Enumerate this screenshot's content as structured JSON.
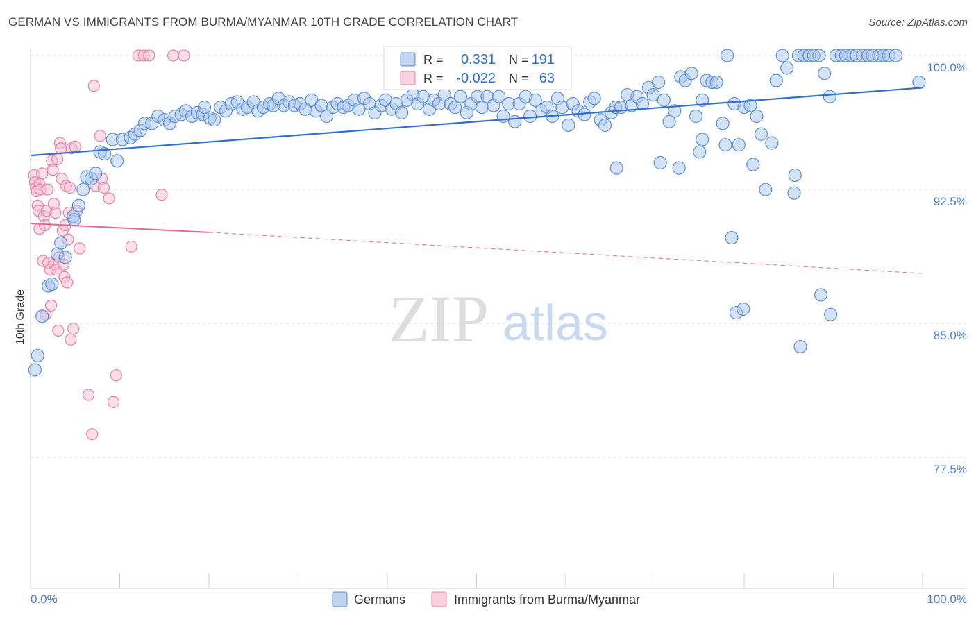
{
  "header": {
    "title": "GERMAN VS IMMIGRANTS FROM BURMA/MYANMAR 10TH GRADE CORRELATION CHART",
    "source": "Source: ZipAtlas.com"
  },
  "watermark": {
    "zip": "ZIP",
    "atlas": "atlas"
  },
  "colors": {
    "blue": "#5b8fd6",
    "blue_fill": "#a9c6ef",
    "blue_line": "#2f6fce",
    "pink": "#e882a4",
    "pink_fill": "#f7bfd1",
    "pink_line": "#e8668f",
    "tick_label": "#4a7fd0",
    "grid": "#dddddd"
  },
  "legend": {
    "rows": [
      {
        "r_label": "R =",
        "r_value": "0.331",
        "n_label": "N =",
        "n_value": "191"
      },
      {
        "r_label": "R =",
        "r_value": "-0.022",
        "n_label": "N =",
        "n_value": "63"
      }
    ]
  },
  "bottom_legend": {
    "germans": "Germans",
    "burma": "Immigrants from Burma/Myanmar"
  },
  "chart_data": {
    "type": "scatter",
    "title": "GERMAN VS IMMIGRANTS FROM BURMA/MYANMAR 10TH GRADE CORRELATION CHART",
    "ylabel": "10th Grade",
    "xlabel": "",
    "x_tick_labels": [
      "0.0%",
      "100.0%"
    ],
    "y_tick_labels": [
      "100.0%",
      "92.5%",
      "85.0%",
      "77.5%"
    ],
    "y_ticks": [
      100.0,
      92.5,
      85.0,
      77.5
    ],
    "xlim": [
      0,
      100
    ],
    "ylim": [
      70.5,
      101.5
    ],
    "grid": true,
    "series": [
      {
        "name": "Germans",
        "R": 0.331,
        "N": 191,
        "trend": {
          "x": [
            0,
            100
          ],
          "y": [
            94.4,
            98.2
          ],
          "style": "solid"
        },
        "points": [
          [
            0.5,
            82.4
          ],
          [
            0.8,
            83.2
          ],
          [
            1.3,
            85.4
          ],
          [
            2.0,
            87.1
          ],
          [
            2.4,
            87.2
          ],
          [
            3.0,
            88.9
          ],
          [
            3.4,
            89.5
          ],
          [
            3.9,
            88.7
          ],
          [
            4.8,
            91.0
          ],
          [
            4.9,
            90.8
          ],
          [
            5.4,
            91.6
          ],
          [
            5.9,
            92.5
          ],
          [
            6.3,
            93.2
          ],
          [
            6.8,
            93.1
          ],
          [
            7.3,
            93.4
          ],
          [
            7.8,
            94.6
          ],
          [
            8.3,
            94.5
          ],
          [
            9.2,
            95.3
          ],
          [
            9.7,
            94.1
          ],
          [
            10.3,
            95.3
          ],
          [
            11.2,
            95.4
          ],
          [
            11.7,
            95.6
          ],
          [
            12.3,
            95.8
          ],
          [
            12.8,
            96.2
          ],
          [
            13.6,
            96.2
          ],
          [
            14.3,
            96.6
          ],
          [
            15.0,
            96.4
          ],
          [
            15.6,
            96.2
          ],
          [
            16.2,
            96.6
          ],
          [
            16.9,
            96.7
          ],
          [
            17.4,
            96.9
          ],
          [
            18.1,
            96.6
          ],
          [
            18.7,
            96.8
          ],
          [
            19.3,
            96.7
          ],
          [
            19.5,
            97.1
          ],
          [
            20.1,
            96.5
          ],
          [
            20.6,
            96.4
          ],
          [
            21.3,
            97.1
          ],
          [
            21.9,
            96.9
          ],
          [
            22.5,
            97.3
          ],
          [
            23.2,
            97.4
          ],
          [
            23.8,
            97.0
          ],
          [
            24.3,
            97.1
          ],
          [
            25.0,
            97.4
          ],
          [
            25.5,
            96.9
          ],
          [
            26.1,
            97.1
          ],
          [
            26.8,
            97.3
          ],
          [
            27.2,
            97.2
          ],
          [
            27.8,
            97.6
          ],
          [
            28.4,
            97.2
          ],
          [
            29.0,
            97.4
          ],
          [
            29.6,
            97.2
          ],
          [
            30.2,
            97.3
          ],
          [
            30.8,
            97.0
          ],
          [
            31.5,
            97.5
          ],
          [
            32.0,
            96.9
          ],
          [
            32.6,
            97.2
          ],
          [
            33.2,
            96.6
          ],
          [
            33.9,
            97.1
          ],
          [
            34.4,
            97.3
          ],
          [
            35.1,
            97.1
          ],
          [
            35.6,
            97.2
          ],
          [
            36.3,
            97.5
          ],
          [
            36.8,
            97.0
          ],
          [
            37.4,
            97.6
          ],
          [
            38.0,
            97.3
          ],
          [
            38.6,
            96.8
          ],
          [
            39.3,
            97.2
          ],
          [
            39.8,
            97.5
          ],
          [
            40.5,
            97.0
          ],
          [
            41.0,
            97.3
          ],
          [
            41.6,
            96.8
          ],
          [
            42.2,
            97.5
          ],
          [
            42.9,
            97.8
          ],
          [
            43.4,
            97.3
          ],
          [
            44.0,
            97.7
          ],
          [
            44.7,
            97.0
          ],
          [
            45.2,
            97.5
          ],
          [
            45.8,
            97.3
          ],
          [
            46.4,
            97.8
          ],
          [
            47.1,
            97.3
          ],
          [
            47.6,
            97.1
          ],
          [
            48.2,
            97.7
          ],
          [
            48.9,
            96.8
          ],
          [
            49.4,
            97.3
          ],
          [
            50.1,
            97.7
          ],
          [
            50.6,
            97.1
          ],
          [
            51.2,
            97.7
          ],
          [
            51.9,
            97.2
          ],
          [
            52.5,
            97.7
          ],
          [
            53.0,
            96.6
          ],
          [
            53.6,
            97.3
          ],
          [
            54.3,
            96.3
          ],
          [
            54.8,
            97.3
          ],
          [
            55.5,
            97.7
          ],
          [
            56.0,
            96.6
          ],
          [
            56.6,
            97.5
          ],
          [
            57.2,
            96.9
          ],
          [
            57.9,
            97.1
          ],
          [
            58.5,
            96.6
          ],
          [
            59.1,
            97.6
          ],
          [
            59.6,
            97.1
          ],
          [
            60.3,
            96.1
          ],
          [
            60.8,
            97.3
          ],
          [
            61.4,
            96.9
          ],
          [
            62.1,
            96.7
          ],
          [
            62.7,
            97.4
          ],
          [
            63.2,
            97.6
          ],
          [
            63.9,
            96.4
          ],
          [
            64.4,
            96.1
          ],
          [
            65.1,
            96.8
          ],
          [
            65.6,
            97.1
          ],
          [
            66.2,
            97.1
          ],
          [
            66.9,
            97.8
          ],
          [
            67.4,
            97.2
          ],
          [
            68.0,
            97.7
          ],
          [
            68.6,
            97.3
          ],
          [
            69.3,
            98.2
          ],
          [
            69.8,
            97.8
          ],
          [
            70.4,
            98.5
          ],
          [
            71.0,
            97.5
          ],
          [
            71.6,
            96.3
          ],
          [
            72.2,
            96.9
          ],
          [
            72.9,
            98.8
          ],
          [
            73.4,
            98.6
          ],
          [
            74.1,
            99.0
          ],
          [
            74.6,
            96.6
          ],
          [
            75.3,
            97.5
          ],
          [
            75.8,
            98.6
          ],
          [
            76.4,
            98.5
          ],
          [
            76.9,
            98.5
          ],
          [
            77.6,
            96.2
          ],
          [
            78.1,
            100.0
          ],
          [
            78.9,
            97.3
          ],
          [
            79.4,
            95.0
          ],
          [
            80.0,
            97.1
          ],
          [
            80.7,
            97.2
          ],
          [
            81.4,
            96.6
          ],
          [
            81.9,
            95.6
          ],
          [
            82.4,
            92.5
          ],
          [
            83.1,
            95.1
          ],
          [
            83.6,
            98.6
          ],
          [
            84.3,
            100.0
          ],
          [
            84.8,
            99.3
          ],
          [
            85.6,
            92.3
          ],
          [
            86.1,
            100.0
          ],
          [
            86.7,
            100.0
          ],
          [
            87.3,
            100.0
          ],
          [
            87.8,
            100.0
          ],
          [
            88.4,
            100.0
          ],
          [
            89.0,
            99.0
          ],
          [
            89.6,
            97.7
          ],
          [
            90.3,
            100.0
          ],
          [
            90.9,
            100.0
          ],
          [
            91.4,
            100.0
          ],
          [
            92.0,
            100.0
          ],
          [
            92.6,
            100.0
          ],
          [
            93.3,
            100.0
          ],
          [
            93.9,
            100.0
          ],
          [
            94.4,
            100.0
          ],
          [
            95.1,
            100.0
          ],
          [
            95.6,
            100.0
          ],
          [
            96.2,
            100.0
          ],
          [
            97.0,
            100.0
          ],
          [
            99.6,
            98.5
          ],
          [
            65.7,
            93.7
          ],
          [
            70.6,
            94.0
          ],
          [
            72.7,
            93.7
          ],
          [
            75.0,
            94.6
          ],
          [
            75.3,
            95.3
          ],
          [
            77.9,
            95.0
          ],
          [
            81.0,
            93.9
          ],
          [
            85.7,
            93.3
          ],
          [
            88.6,
            86.6
          ],
          [
            78.6,
            89.8
          ],
          [
            79.1,
            85.6
          ],
          [
            79.9,
            85.8
          ],
          [
            89.7,
            85.5
          ],
          [
            86.3,
            83.7
          ]
        ]
      },
      {
        "name": "Immigrants from Burma/Myanmar",
        "R": -0.022,
        "N": 63,
        "trend": {
          "x": [
            0,
            20
          ],
          "y": [
            90.6,
            90.1
          ],
          "style": "solid",
          "dashed_to": [
            100,
            87.8
          ]
        },
        "points": [
          [
            0.4,
            93.3
          ],
          [
            0.5,
            92.9
          ],
          [
            0.6,
            92.6
          ],
          [
            0.7,
            92.4
          ],
          [
            0.8,
            91.6
          ],
          [
            0.9,
            91.3
          ],
          [
            1.0,
            92.8
          ],
          [
            1.0,
            90.3
          ],
          [
            1.1,
            92.5
          ],
          [
            1.3,
            93.4
          ],
          [
            1.4,
            88.5
          ],
          [
            1.5,
            91.0
          ],
          [
            1.6,
            90.5
          ],
          [
            1.7,
            85.5
          ],
          [
            1.8,
            91.3
          ],
          [
            1.9,
            92.5
          ],
          [
            2.0,
            88.4
          ],
          [
            2.2,
            88.0
          ],
          [
            2.3,
            86.0
          ],
          [
            2.4,
            94.1
          ],
          [
            2.5,
            93.6
          ],
          [
            2.6,
            91.7
          ],
          [
            2.7,
            88.3
          ],
          [
            2.8,
            91.2
          ],
          [
            2.9,
            88.0
          ],
          [
            3.0,
            94.2
          ],
          [
            3.1,
            84.6
          ],
          [
            3.2,
            88.7
          ],
          [
            3.3,
            95.1
          ],
          [
            3.4,
            94.8
          ],
          [
            3.5,
            93.1
          ],
          [
            3.6,
            90.2
          ],
          [
            3.7,
            88.3
          ],
          [
            3.8,
            87.6
          ],
          [
            3.9,
            90.5
          ],
          [
            4.0,
            92.7
          ],
          [
            4.1,
            87.3
          ],
          [
            4.2,
            89.7
          ],
          [
            4.3,
            91.2
          ],
          [
            4.4,
            92.6
          ],
          [
            4.5,
            84.1
          ],
          [
            4.6,
            94.8
          ],
          [
            4.8,
            84.7
          ],
          [
            5.0,
            94.9
          ],
          [
            5.2,
            91.3
          ],
          [
            5.5,
            89.2
          ],
          [
            6.5,
            81.0
          ],
          [
            6.9,
            78.8
          ],
          [
            7.1,
            98.3
          ],
          [
            7.3,
            92.7
          ],
          [
            7.8,
            95.5
          ],
          [
            8.0,
            93.1
          ],
          [
            8.2,
            92.6
          ],
          [
            8.8,
            92.0
          ],
          [
            9.3,
            80.6
          ],
          [
            9.6,
            82.1
          ],
          [
            11.3,
            89.3
          ],
          [
            12.1,
            100.0
          ],
          [
            12.7,
            100.0
          ],
          [
            13.3,
            100.0
          ],
          [
            14.7,
            92.2
          ],
          [
            16.0,
            100.0
          ],
          [
            17.2,
            100.0
          ]
        ]
      }
    ]
  }
}
